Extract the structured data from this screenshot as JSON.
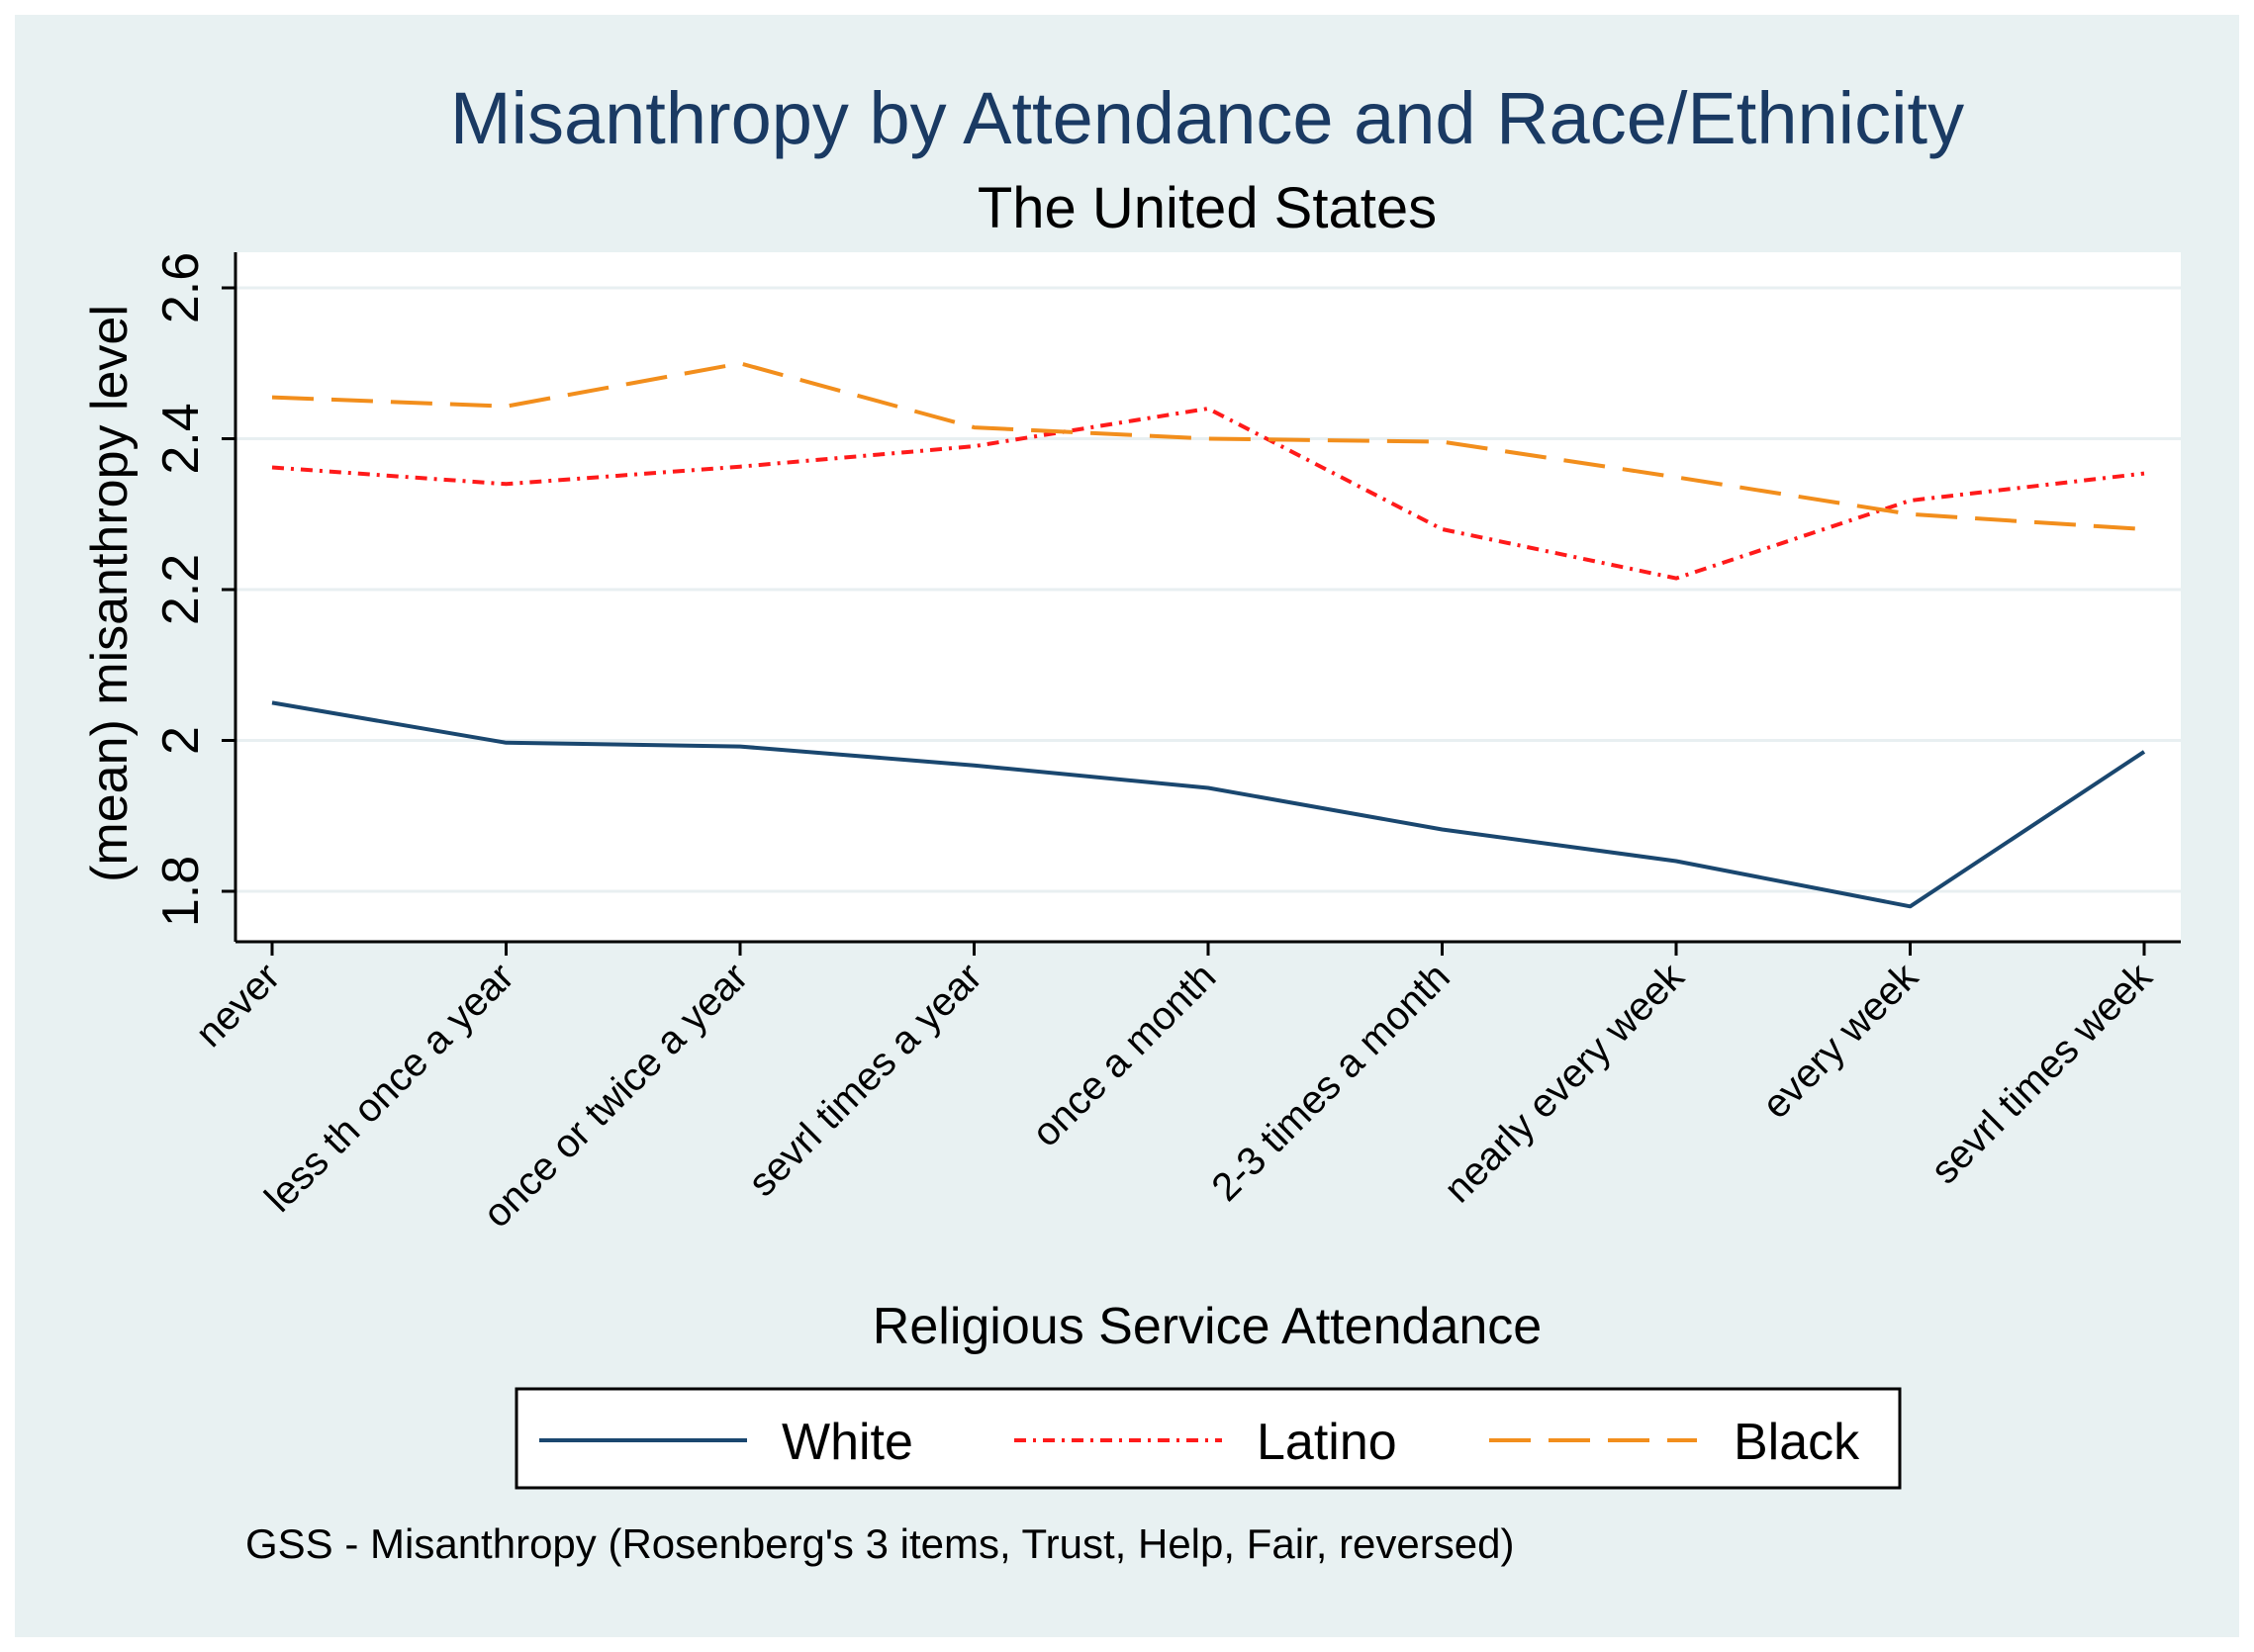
{
  "chart_data": {
    "type": "line",
    "title": "Misanthropy by Attendance and Race/Ethnicity",
    "subtitle": "The United States",
    "xlabel": "Religious Service Attendance",
    "ylabel": "(mean) misanthropy level",
    "note": "GSS - Misanthropy (Rosenberg's 3 items, Trust, Help, Fair, reversed)",
    "categories": [
      "never",
      "less th once a year",
      "once or twice a year",
      "sevrl times a year",
      "once a month",
      "2-3 times a month",
      "nearly every week",
      "every week",
      "sevrl times week"
    ],
    "ylim": [
      1.75,
      2.645
    ],
    "yticks": [
      1.8,
      2,
      2.2,
      2.4,
      2.6
    ],
    "ytick_labels": [
      "1.8",
      "2",
      "2.2",
      "2.4",
      "2.6"
    ],
    "grid": true,
    "legend_position": "bottom",
    "series": [
      {
        "name": "White",
        "color": "#1a476f",
        "style": "solid",
        "values": [
          2.05,
          1.997,
          1.992,
          1.967,
          1.937,
          1.882,
          1.84,
          1.78,
          1.985
        ]
      },
      {
        "name": "Latino",
        "color": "#ff1a1a",
        "style": "dashdot",
        "values": [
          2.362,
          2.34,
          2.363,
          2.39,
          2.44,
          2.28,
          2.215,
          2.318,
          2.354
        ]
      },
      {
        "name": "Black",
        "color": "#f28e1c",
        "style": "longdash",
        "values": [
          2.455,
          2.443,
          2.5,
          2.415,
          2.4,
          2.396,
          2.349,
          2.3,
          2.28
        ]
      }
    ]
  },
  "colors": {
    "outer_background": "#e8f1f2",
    "plot_background": "#ffffff",
    "title": "#1a3a63",
    "gridline": "#e8eff1",
    "axis": "#000000"
  }
}
